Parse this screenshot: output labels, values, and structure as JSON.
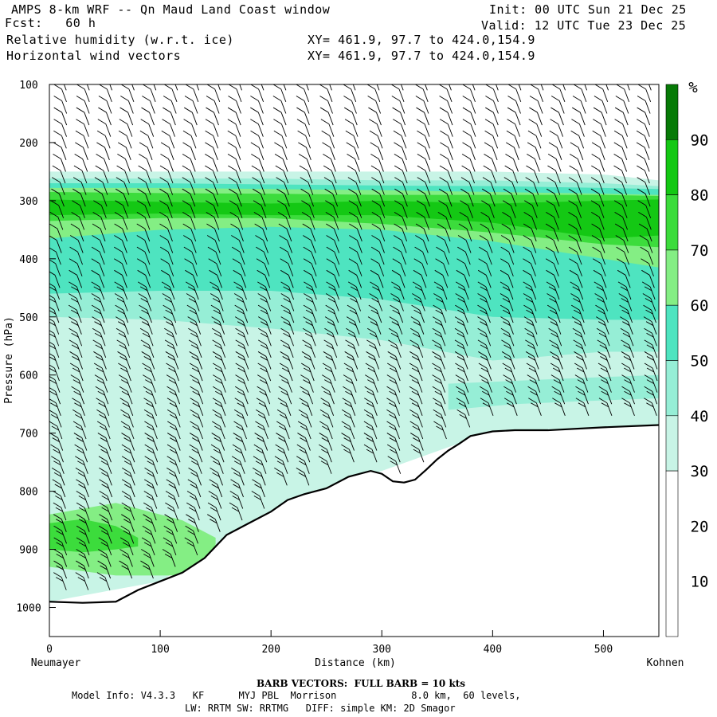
{
  "header": {
    "title": "AMPS 8-km WRF -- Qn Maud Land Coast window",
    "fcst": "Fcst:   60 h",
    "field1": "Relative humidity (w.r.t. ice)",
    "field2": "Horizontal wind vectors",
    "xy1": "XY= 461.9, 97.7 to 424.0,154.9",
    "xy2": "XY= 461.9, 97.7 to 424.0,154.9",
    "init": "Init: 00 UTC Sun 21 Dec 25",
    "valid": "Valid: 12 UTC Tue 23 Dec 25"
  },
  "footer": {
    "barb_note": "BARB VECTORS:  FULL BARB = 10 kts",
    "model_line1": "Model Info: V4.3.3   KF      MYJ PBL  Morrison             8.0 km,  60 levels,",
    "model_line2": "LW: RRTM SW: RRTMG   DIFF: simple KM: 2D Smagor"
  },
  "colors": {
    "white": "#ffffff",
    "c30": "#c8f4e6",
    "c40": "#96eed6",
    "c50": "#4ee4c0",
    "c60": "#84ee84",
    "c70": "#3cdc3c",
    "c80": "#14c814",
    "c90": "#0c9c0c",
    "c95": "#077a07"
  },
  "chart_data": {
    "type": "cross-section",
    "title": "Relative humidity (w.r.t. ice) and horizontal wind vectors",
    "xlabel": "Distance (km)",
    "ylabel": "Pressure (hPa)",
    "xlim": [
      0,
      550
    ],
    "ylim": [
      1050,
      100
    ],
    "x_ticks": [
      0,
      100,
      200,
      300,
      400,
      500
    ],
    "y_ticks": [
      100,
      200,
      300,
      400,
      500,
      600,
      700,
      800,
      900,
      1000
    ],
    "left_endpoint": "Neumayer",
    "right_endpoint": "Kohnen",
    "colorbar": {
      "unit": "%",
      "levels": [
        10,
        20,
        30,
        40,
        50,
        60,
        70,
        80,
        90
      ],
      "bands": [
        {
          "from": 0,
          "to": 30,
          "color": "#ffffff"
        },
        {
          "from": 30,
          "to": 40,
          "color": "#c8f4e6"
        },
        {
          "from": 40,
          "to": 50,
          "color": "#96eed6"
        },
        {
          "from": 50,
          "to": 60,
          "color": "#4ee4c0"
        },
        {
          "from": 60,
          "to": 70,
          "color": "#84ee84"
        },
        {
          "from": 70,
          "to": 80,
          "color": "#3cdc3c"
        },
        {
          "from": 80,
          "to": 90,
          "color": "#14c814"
        },
        {
          "from": 90,
          "to": 100,
          "color": "#077a07"
        }
      ]
    },
    "terrain": {
      "distance_km": [
        0,
        30,
        60,
        80,
        100,
        120,
        140,
        160,
        180,
        200,
        215,
        230,
        250,
        270,
        290,
        300,
        310,
        320,
        330,
        340,
        350,
        360,
        370,
        380,
        400,
        420,
        450,
        500,
        550
      ],
      "surface_hPa": [
        990,
        992,
        990,
        970,
        955,
        940,
        915,
        875,
        855,
        835,
        815,
        805,
        795,
        775,
        765,
        770,
        783,
        785,
        780,
        763,
        745,
        730,
        718,
        705,
        697,
        695,
        695,
        690,
        686
      ]
    },
    "rh_regions": [
      {
        "level": 30,
        "distance_km": [
          0,
          100,
          200,
          300,
          400,
          500,
          550
        ],
        "top_hPa": [
          250,
          250,
          250,
          250,
          250,
          255,
          265
        ],
        "bottom_hPa": [
          990,
          955,
          835,
          765,
          697,
          690,
          686
        ]
      },
      {
        "level": 40,
        "distance_km": [
          0,
          100,
          200,
          300,
          400,
          500,
          550
        ],
        "top_hPa": [
          262,
          262,
          262,
          265,
          265,
          270,
          275
        ],
        "bottom_hPa": [
          500,
          505,
          520,
          540,
          575,
          560,
          560
        ]
      },
      {
        "level": 50,
        "distance_km": [
          0,
          100,
          200,
          300,
          400,
          500,
          550
        ],
        "top_hPa": [
          270,
          270,
          272,
          274,
          275,
          278,
          280
        ],
        "bottom_hPa": [
          460,
          455,
          455,
          470,
          500,
          505,
          505
        ]
      },
      {
        "level": 60,
        "distance_km": [
          0,
          100,
          200,
          300,
          400,
          500,
          550
        ],
        "top_hPa": [
          278,
          278,
          280,
          282,
          285,
          288,
          290
        ],
        "bottom_hPa": [
          365,
          350,
          345,
          350,
          370,
          400,
          415
        ]
      },
      {
        "level": 70,
        "distance_km": [
          0,
          100,
          200,
          300,
          400,
          500,
          550
        ],
        "top_hPa": [
          285,
          287,
          288,
          290,
          290,
          290,
          292
        ],
        "bottom_hPa": [
          335,
          330,
          330,
          340,
          355,
          375,
          380
        ]
      },
      {
        "level": 80,
        "distance_km": [
          0,
          100,
          200,
          300,
          400,
          500,
          550
        ],
        "top_hPa": [
          298,
          302,
          305,
          300,
          305,
          300,
          298
        ],
        "bottom_hPa": [
          325,
          322,
          325,
          325,
          338,
          365,
          360
        ]
      },
      {
        "level": 60,
        "distance_km": [
          0,
          60,
          120,
          150
        ],
        "top_hPa": [
          840,
          820,
          850,
          880
        ],
        "bottom_hPa": [
          930,
          945,
          945,
          940
        ]
      },
      {
        "level": 70,
        "distance_km": [
          0,
          30,
          60,
          80
        ],
        "top_hPa": [
          855,
          848,
          860,
          880
        ],
        "bottom_hPa": [
          900,
          905,
          900,
          895
        ]
      },
      {
        "level": 40,
        "distance_km": [
          360,
          420,
          480,
          550
        ],
        "top_hPa": [
          615,
          610,
          605,
          600
        ],
        "bottom_hPa": [
          660,
          650,
          645,
          640
        ]
      }
    ],
    "wind_barbs": "Vertical columns of wind barbs every ~20 km (full barb = 10 kts), mostly northerly/northwesterly flow"
  },
  "axis_labels": {
    "x_title": "Distance (km)",
    "y_title": "Pressure (hPa)",
    "left": "Neumayer",
    "right": "Kohnen",
    "unit": "%"
  }
}
